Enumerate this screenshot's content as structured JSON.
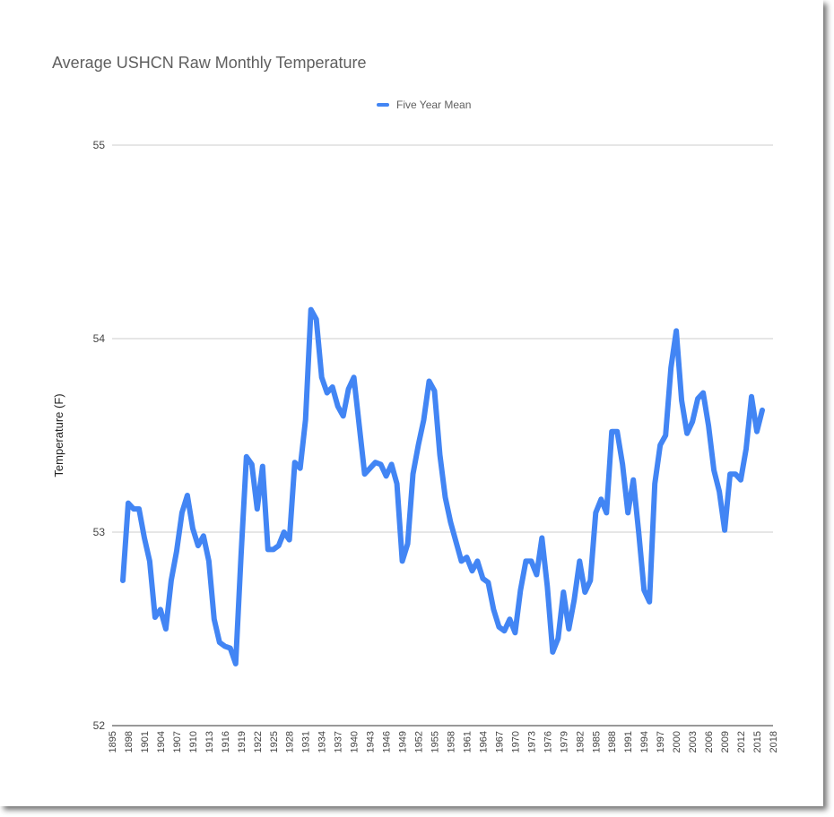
{
  "chart_data": {
    "type": "line",
    "title": "Average USHCN Raw Monthly Temperature",
    "xlabel": "",
    "ylabel": "Temperature (F)",
    "ylim": [
      52,
      55
    ],
    "xlim": [
      1895,
      2018
    ],
    "yticks": [
      "52",
      "53",
      "54",
      "55"
    ],
    "xticks": [
      "1895",
      "1898",
      "1901",
      "1904",
      "1907",
      "1910",
      "1913",
      "1916",
      "1919",
      "1922",
      "1925",
      "1928",
      "1931",
      "1934",
      "1937",
      "1940",
      "1943",
      "1946",
      "1949",
      "1952",
      "1955",
      "1958",
      "1961",
      "1964",
      "1967",
      "1970",
      "1973",
      "1976",
      "1979",
      "1982",
      "1985",
      "1988",
      "1991",
      "1994",
      "1997",
      "2000",
      "2003",
      "2006",
      "2009",
      "2012",
      "2015",
      "2018"
    ],
    "legend_position": "top",
    "series": [
      {
        "name": "Five Year Mean",
        "color": "#4285f4",
        "x": [
          1897,
          1898,
          1899,
          1900,
          1901,
          1902,
          1903,
          1904,
          1905,
          1906,
          1907,
          1908,
          1909,
          1910,
          1911,
          1912,
          1913,
          1914,
          1915,
          1916,
          1917,
          1918,
          1919,
          1920,
          1921,
          1922,
          1923,
          1924,
          1925,
          1926,
          1927,
          1928,
          1929,
          1930,
          1931,
          1932,
          1933,
          1934,
          1935,
          1936,
          1937,
          1938,
          1939,
          1940,
          1941,
          1942,
          1943,
          1944,
          1945,
          1946,
          1947,
          1948,
          1949,
          1950,
          1951,
          1952,
          1953,
          1954,
          1955,
          1956,
          1957,
          1958,
          1959,
          1960,
          1961,
          1962,
          1963,
          1964,
          1965,
          1966,
          1967,
          1968,
          1969,
          1970,
          1971,
          1972,
          1973,
          1974,
          1975,
          1976,
          1977,
          1978,
          1979,
          1980,
          1981,
          1982,
          1983,
          1984,
          1985,
          1986,
          1987,
          1988,
          1989,
          1990,
          1991,
          1992,
          1993,
          1994,
          1995,
          1996,
          1997,
          1998,
          1999,
          2000,
          2001,
          2002,
          2003,
          2004,
          2005,
          2006,
          2007,
          2008,
          2009,
          2010,
          2011,
          2012,
          2013,
          2014,
          2015,
          2016
        ],
        "values": [
          52.75,
          53.15,
          53.12,
          53.12,
          52.97,
          52.85,
          52.56,
          52.6,
          52.5,
          52.75,
          52.9,
          53.1,
          53.19,
          53.02,
          52.93,
          52.98,
          52.85,
          52.55,
          52.43,
          52.41,
          52.4,
          52.32,
          52.88,
          53.39,
          53.35,
          53.12,
          53.34,
          52.91,
          52.91,
          52.93,
          53.0,
          52.96,
          53.36,
          53.33,
          53.58,
          54.15,
          54.1,
          53.8,
          53.72,
          53.75,
          53.65,
          53.6,
          53.74,
          53.8,
          53.55,
          53.3,
          53.33,
          53.36,
          53.35,
          53.29,
          53.35,
          53.25,
          52.85,
          52.94,
          53.3,
          53.45,
          53.58,
          53.78,
          53.73,
          53.4,
          53.18,
          53.05,
          52.95,
          52.85,
          52.87,
          52.8,
          52.85,
          52.76,
          52.74,
          52.6,
          52.51,
          52.49,
          52.55,
          52.48,
          52.7,
          52.85,
          52.85,
          52.78,
          52.97,
          52.72,
          52.38,
          52.45,
          52.69,
          52.5,
          52.65,
          52.85,
          52.69,
          52.75,
          53.1,
          53.17,
          53.1,
          53.52,
          53.52,
          53.35,
          53.1,
          53.27,
          53.0,
          52.7,
          52.64,
          53.25,
          53.45,
          53.5,
          53.85,
          54.04,
          53.68,
          53.51,
          53.57,
          53.69,
          53.72,
          53.55,
          53.32,
          53.21,
          53.01,
          53.3,
          53.3,
          53.27,
          53.43,
          53.7,
          53.52,
          53.63
        ]
      }
    ]
  }
}
